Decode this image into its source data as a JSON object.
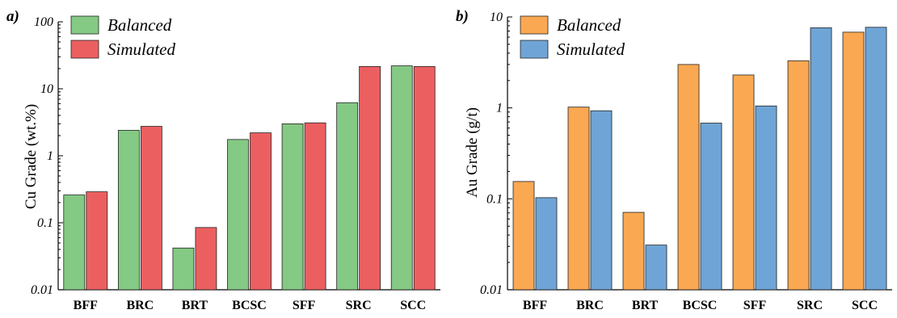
{
  "chart_data": [
    {
      "type": "bar",
      "panel_label": "a)",
      "ylabel": "Cu Grade (wt.%)",
      "xlabel": "",
      "yscale": "log",
      "ylim": [
        0.01,
        100
      ],
      "yticks": [
        "0.01",
        "0.1",
        "1",
        "10",
        "100"
      ],
      "categories": [
        "BFF",
        "BRC",
        "BRT",
        "BCSC",
        "SFF",
        "SRC",
        "SCC"
      ],
      "legend_position": "top-left",
      "series": [
        {
          "name": "Balanced",
          "color": "#84c984",
          "values": [
            0.26,
            2.4,
            0.042,
            1.75,
            3.0,
            6.2,
            22.0
          ]
        },
        {
          "name": "Simulated",
          "color": "#ec5f60",
          "values": [
            0.29,
            2.75,
            0.085,
            2.2,
            3.1,
            21.5,
            21.5
          ]
        }
      ]
    },
    {
      "type": "bar",
      "panel_label": "b)",
      "ylabel": "Au Grade (g/t)",
      "xlabel": "",
      "yscale": "log",
      "ylim": [
        0.01,
        10
      ],
      "yticks": [
        "0.01",
        "0.1",
        "1",
        "10"
      ],
      "categories": [
        "BFF",
        "BRC",
        "BRT",
        "BCSC",
        "SFF",
        "SRC",
        "SCC"
      ],
      "legend_position": "top-left",
      "series": [
        {
          "name": "Balanced",
          "color": "#fba852",
          "values": [
            0.155,
            1.02,
            0.071,
            3.0,
            2.3,
            3.3,
            6.8
          ]
        },
        {
          "name": "Simulated",
          "color": "#6fa5d6",
          "values": [
            0.103,
            0.93,
            0.031,
            0.68,
            1.05,
            7.6,
            7.7
          ]
        }
      ]
    }
  ]
}
